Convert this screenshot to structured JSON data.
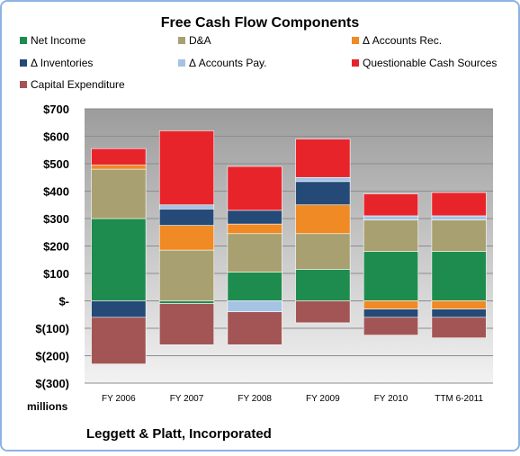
{
  "chart_data": {
    "type": "bar",
    "stacked": true,
    "title": "Free Cash Flow Components",
    "subtitle": "Leggett & Platt, Incorporated",
    "units_label": "millions",
    "categories": [
      "FY 2006",
      "FY 2007",
      "FY 2008",
      "FY 2009",
      "FY 2010",
      "TTM 6-2011"
    ],
    "ylim": [
      -300,
      700
    ],
    "yticks": [
      -300,
      -200,
      -100,
      0,
      100,
      200,
      300,
      400,
      500,
      600,
      700
    ],
    "ytick_labels": [
      "$(300)",
      "$(200)",
      "$(100)",
      "$-",
      "$100",
      "$200",
      "$300",
      "$400",
      "$500",
      "$600",
      "$700"
    ],
    "grid": true,
    "legend_position": "top",
    "series": [
      {
        "name": "Net Income",
        "color": "#1E8C4E",
        "values": [
          300,
          -10,
          105,
          115,
          180,
          180
        ]
      },
      {
        "name": "D&A",
        "color": "#A8A070",
        "values": [
          180,
          185,
          140,
          130,
          115,
          115
        ]
      },
      {
        "name": "Δ Accounts Rec.",
        "color": "#F08A24",
        "values": [
          15,
          90,
          35,
          105,
          -30,
          -30
        ]
      },
      {
        "name": "Δ Inventories",
        "color": "#254A77",
        "values": [
          -60,
          60,
          50,
          85,
          -30,
          -30
        ]
      },
      {
        "name": "Δ Accounts Pay.",
        "color": "#A5C3E3",
        "values": [
          0,
          15,
          -40,
          15,
          15,
          15
        ]
      },
      {
        "name": "Questionable Cash Sources",
        "color": "#E8242B",
        "values": [
          60,
          270,
          160,
          140,
          80,
          85
        ]
      },
      {
        "name": "Capital Expenditure",
        "color": "#A35555",
        "values": [
          -170,
          -150,
          -120,
          -80,
          -65,
          -75
        ]
      }
    ]
  }
}
